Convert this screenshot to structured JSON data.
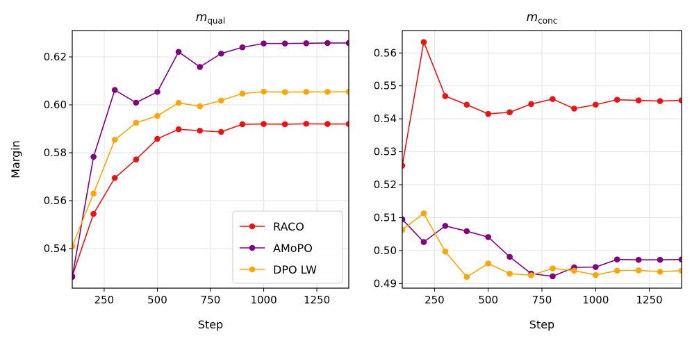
{
  "chart_data": [
    {
      "type": "line",
      "title_main": "m",
      "title_sub": "qual",
      "xlabel": "Step",
      "ylabel": "Margin",
      "xlim": [
        100,
        1400
      ],
      "ylim": [
        0.5235,
        0.631
      ],
      "x_ticks": [
        250,
        500,
        750,
        1000,
        1250
      ],
      "y_ticks": [
        0.54,
        0.56,
        0.58,
        0.6,
        0.62
      ],
      "y_tick_labels": [
        "0.54",
        "0.56",
        "0.58",
        "0.60",
        "0.62"
      ],
      "x_tick_labels": [
        "250",
        "500",
        "750",
        "1000",
        "1250"
      ],
      "grid": true,
      "legend": "bottom-right",
      "x": [
        100,
        200,
        300,
        400,
        500,
        600,
        700,
        800,
        900,
        1000,
        1100,
        1200,
        1300,
        1400
      ],
      "series": [
        {
          "name": "RACO",
          "color": "#ee1111",
          "values": [
            0.5285,
            0.5545,
            0.5695,
            0.5772,
            0.5858,
            0.5898,
            0.5892,
            0.5887,
            0.5919,
            0.592,
            0.5919,
            0.5921,
            0.592,
            0.592
          ]
        },
        {
          "name": "AMoPO",
          "color": "#800080",
          "values": [
            0.5282,
            0.5783,
            0.6062,
            0.6009,
            0.6054,
            0.6221,
            0.6158,
            0.6214,
            0.624,
            0.6256,
            0.6256,
            0.6257,
            0.6258,
            0.6258
          ]
        },
        {
          "name": "DPO LW",
          "color": "#ffa500",
          "values": [
            0.541,
            0.563,
            0.5854,
            0.5925,
            0.5954,
            0.6008,
            0.5994,
            0.6018,
            0.6047,
            0.6055,
            0.6053,
            0.6054,
            0.6054,
            0.6055
          ]
        }
      ]
    },
    {
      "type": "line",
      "title_main": "m",
      "title_sub": "conc",
      "xlabel": "Step",
      "ylabel": "",
      "xlim": [
        100,
        1400
      ],
      "ylim": [
        0.4886,
        0.5668
      ],
      "x_ticks": [
        250,
        500,
        750,
        1000,
        1250
      ],
      "y_ticks": [
        0.49,
        0.5,
        0.51,
        0.52,
        0.53,
        0.54,
        0.55,
        0.56
      ],
      "y_tick_labels": [
        "0.49",
        "0.50",
        "0.51",
        "0.52",
        "0.53",
        "0.54",
        "0.55",
        "0.56"
      ],
      "x_tick_labels": [
        "250",
        "500",
        "750",
        "1000",
        "1250"
      ],
      "grid": true,
      "x": [
        100,
        200,
        300,
        400,
        500,
        600,
        700,
        800,
        900,
        1000,
        1100,
        1200,
        1300,
        1400
      ],
      "series": [
        {
          "name": "RACO",
          "color": "#ee1111",
          "values": [
            0.5258,
            0.5633,
            0.5469,
            0.5443,
            0.5415,
            0.542,
            0.5445,
            0.546,
            0.5431,
            0.5443,
            0.5458,
            0.5456,
            0.5454,
            0.5456
          ]
        },
        {
          "name": "AMoPO",
          "color": "#800080",
          "values": [
            0.5095,
            0.5026,
            0.5075,
            0.5059,
            0.5041,
            0.4981,
            0.493,
            0.4922,
            0.4949,
            0.495,
            0.4973,
            0.4972,
            0.4972,
            0.4973
          ]
        },
        {
          "name": "DPO LW",
          "color": "#ffa500",
          "values": [
            0.5063,
            0.5113,
            0.4997,
            0.492,
            0.4961,
            0.493,
            0.4925,
            0.4946,
            0.4939,
            0.4926,
            0.4939,
            0.494,
            0.4936,
            0.4939
          ]
        }
      ]
    }
  ]
}
